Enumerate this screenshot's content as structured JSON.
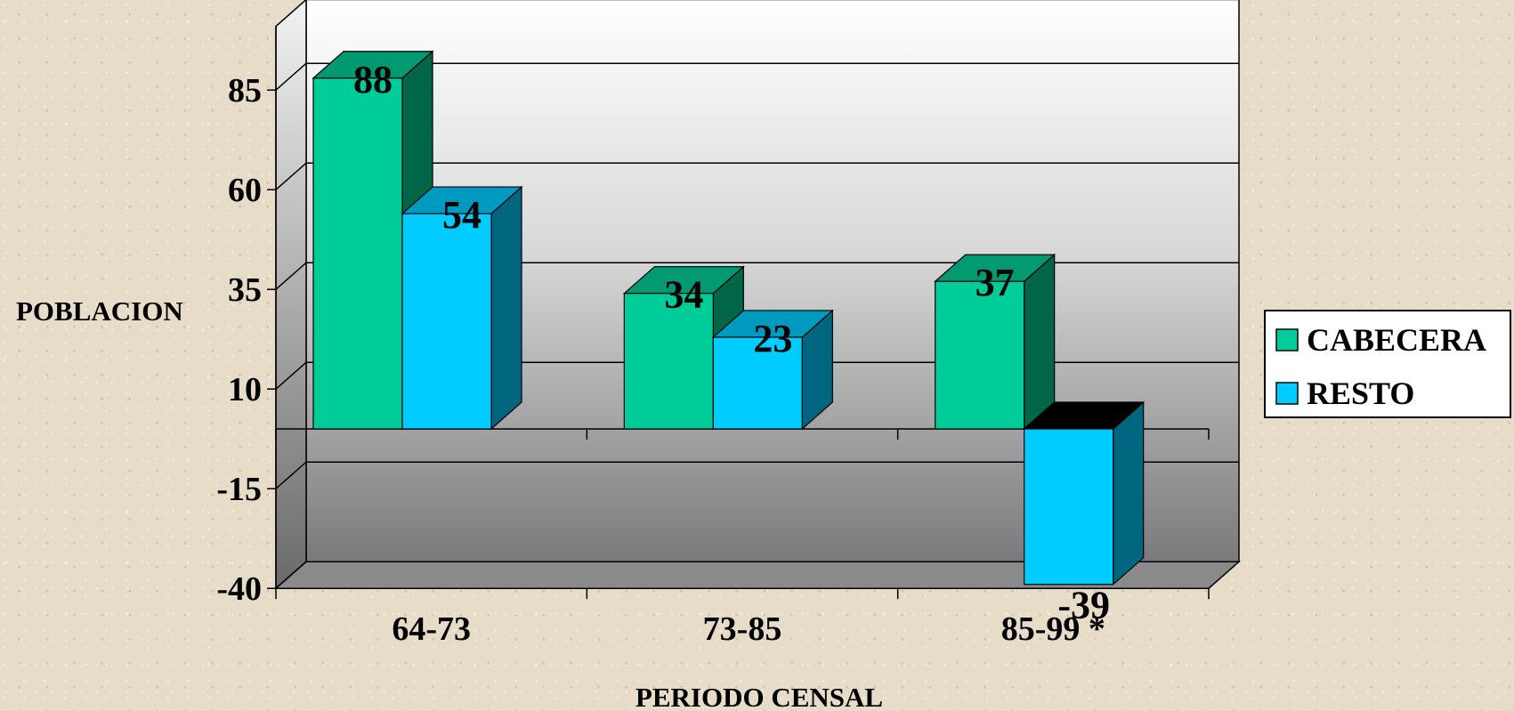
{
  "chart_data": {
    "type": "bar",
    "categories": [
      "64-73",
      "73-85",
      "85-99 *"
    ],
    "series": [
      {
        "name": "CABECERA",
        "values": [
          88,
          34,
          37
        ],
        "color": "#00cc99",
        "side_color": "#006647",
        "top_color": "#009970"
      },
      {
        "name": "RESTO",
        "values": [
          54,
          23,
          -39
        ],
        "color": "#00ccff",
        "side_color": "#006680",
        "top_color": "#0099bf"
      }
    ],
    "ylabel": "POBLACION",
    "xlabel": "PERIODO CENSAL",
    "yticks": [
      85,
      60,
      35,
      10,
      -15,
      -40
    ],
    "ylim": [
      -40,
      101
    ],
    "legend": "right",
    "grid": true,
    "style": "3d-clustered-column"
  }
}
